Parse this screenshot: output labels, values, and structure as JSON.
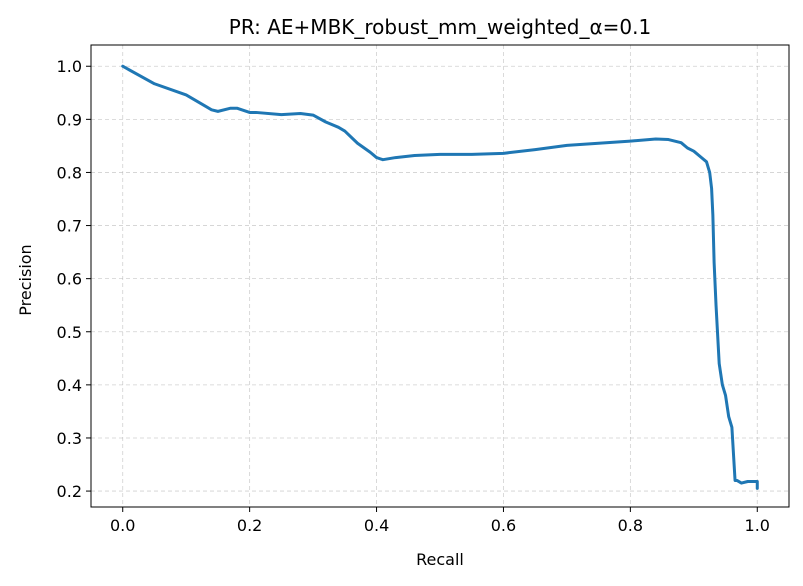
{
  "chart_data": {
    "type": "line",
    "title": "PR: AE+MBK_robust_mm_weighted_α=0.1",
    "xlabel": "Recall",
    "ylabel": "Precision",
    "xlim": [
      -0.05,
      1.05
    ],
    "ylim": [
      0.17,
      1.04
    ],
    "xticks": [
      0.0,
      0.2,
      0.4,
      0.6,
      0.8,
      1.0
    ],
    "xtick_labels": [
      "0.0",
      "0.2",
      "0.4",
      "0.6",
      "0.8",
      "1.0"
    ],
    "yticks": [
      0.2,
      0.3,
      0.4,
      0.5,
      0.6,
      0.7,
      0.8,
      0.9,
      1.0
    ],
    "ytick_labels": [
      "0.2",
      "0.3",
      "0.4",
      "0.5",
      "0.6",
      "0.7",
      "0.8",
      "0.9",
      "1.0"
    ],
    "grid": true,
    "series": [
      {
        "color": "#1f77b4",
        "x": [
          0.0,
          0.05,
          0.1,
          0.13,
          0.14,
          0.15,
          0.17,
          0.18,
          0.2,
          0.21,
          0.25,
          0.28,
          0.3,
          0.32,
          0.34,
          0.35,
          0.37,
          0.39,
          0.4,
          0.41,
          0.43,
          0.46,
          0.5,
          0.55,
          0.6,
          0.65,
          0.7,
          0.75,
          0.8,
          0.84,
          0.86,
          0.88,
          0.89,
          0.9,
          0.91,
          0.92,
          0.925,
          0.928,
          0.93,
          0.932,
          0.935,
          0.94,
          0.945,
          0.95,
          0.955,
          0.96,
          0.965,
          0.968,
          0.975,
          0.985,
          0.99,
          0.995,
          1.0,
          1.0
        ],
        "y": [
          1.0,
          0.967,
          0.946,
          0.925,
          0.918,
          0.915,
          0.921,
          0.921,
          0.913,
          0.913,
          0.909,
          0.911,
          0.908,
          0.895,
          0.885,
          0.878,
          0.855,
          0.838,
          0.828,
          0.824,
          0.828,
          0.832,
          0.834,
          0.834,
          0.836,
          0.843,
          0.851,
          0.855,
          0.859,
          0.863,
          0.862,
          0.856,
          0.846,
          0.84,
          0.83,
          0.82,
          0.8,
          0.77,
          0.72,
          0.63,
          0.55,
          0.44,
          0.4,
          0.38,
          0.34,
          0.32,
          0.22,
          0.22,
          0.215,
          0.218,
          0.218,
          0.218,
          0.218,
          0.205
        ]
      }
    ]
  }
}
